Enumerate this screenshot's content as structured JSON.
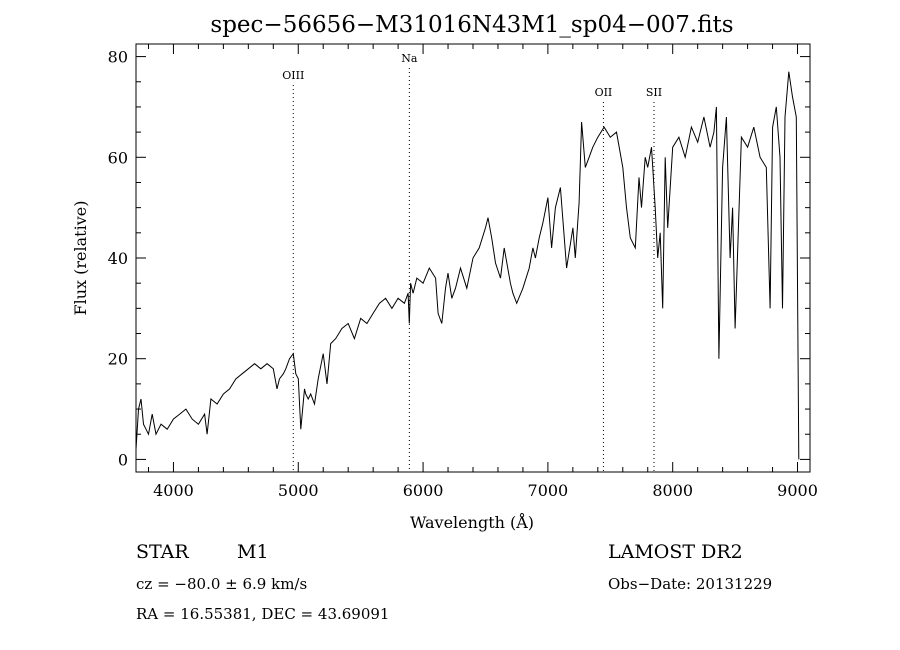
{
  "chart_data": {
    "type": "line",
    "title": "spec−56656−M31016N43M1_sp04−007.fits",
    "xlabel": "Wavelength (Å)",
    "ylabel": "Flux (relative)",
    "xlim": [
      3700,
      9100
    ],
    "ylim": [
      -2.5,
      82.5
    ],
    "xticks": [
      4000,
      5000,
      6000,
      7000,
      8000,
      9000
    ],
    "yticks": [
      0,
      20,
      40,
      60,
      80
    ],
    "grid": false,
    "series": [
      {
        "x": [
          3700,
          3720,
          3740,
          3760,
          3780,
          3800,
          3830,
          3860,
          3900,
          3950,
          4000,
          4050,
          4100,
          4150,
          4200,
          4250,
          4270,
          4300,
          4350,
          4400,
          4450,
          4500,
          4550,
          4600,
          4650,
          4700,
          4750,
          4800,
          4830,
          4850,
          4880,
          4900,
          4930,
          4960,
          4980,
          5000,
          5020,
          5050,
          5060,
          5080,
          5100,
          5130,
          5160,
          5200,
          5230,
          5260,
          5300,
          5350,
          5400,
          5450,
          5500,
          5550,
          5600,
          5650,
          5700,
          5750,
          5800,
          5850,
          5880,
          5890,
          5900,
          5920,
          5950,
          6000,
          6050,
          6100,
          6120,
          6150,
          6180,
          6200,
          6230,
          6260,
          6300,
          6350,
          6400,
          6450,
          6500,
          6520,
          6550,
          6580,
          6620,
          6650,
          6700,
          6720,
          6750,
          6800,
          6850,
          6880,
          6900,
          6930,
          6960,
          7000,
          7030,
          7060,
          7100,
          7150,
          7200,
          7220,
          7250,
          7270,
          7300,
          7330,
          7360,
          7400,
          7450,
          7500,
          7550,
          7600,
          7630,
          7660,
          7700,
          7730,
          7750,
          7780,
          7800,
          7830,
          7860,
          7880,
          7900,
          7920,
          7940,
          7960,
          8000,
          8050,
          8100,
          8150,
          8200,
          8250,
          8300,
          8330,
          8350,
          8370,
          8400,
          8430,
          8460,
          8480,
          8500,
          8550,
          8600,
          8650,
          8700,
          8750,
          8780,
          8800,
          8830,
          8860,
          8880,
          8900,
          8930,
          8960,
          8990,
          9000,
          9010
        ],
        "y": [
          2,
          10,
          12,
          7,
          6,
          5,
          9,
          5,
          7,
          6,
          8,
          9,
          10,
          8,
          7,
          9,
          5,
          12,
          11,
          13,
          14,
          16,
          17,
          18,
          19,
          18,
          19,
          18,
          14,
          16,
          17,
          18,
          20,
          21,
          17,
          16,
          6,
          14,
          13,
          12,
          13,
          11,
          16,
          21,
          15,
          23,
          24,
          26,
          27,
          24,
          28,
          27,
          29,
          31,
          32,
          30,
          32,
          31,
          33,
          27,
          35,
          33,
          36,
          35,
          38,
          36,
          29,
          27,
          34,
          37,
          32,
          34,
          38,
          34,
          40,
          42,
          46,
          48,
          44,
          39,
          36,
          42,
          35,
          33,
          31,
          34,
          38,
          42,
          40,
          44,
          47,
          52,
          42,
          50,
          54,
          38,
          46,
          40,
          51,
          67,
          58,
          60,
          62,
          64,
          66,
          64,
          65,
          58,
          50,
          44,
          42,
          56,
          50,
          60,
          58,
          62,
          50,
          40,
          45,
          30,
          60,
          46,
          62,
          64,
          60,
          66,
          63,
          68,
          62,
          65,
          70,
          20,
          58,
          68,
          40,
          50,
          26,
          64,
          62,
          66,
          60,
          58,
          30,
          66,
          70,
          60,
          30,
          68,
          77,
          72,
          68,
          35,
          0
        ]
      }
    ],
    "annotations": [
      {
        "label": "OIII",
        "x": 4960
      },
      {
        "label": "Na",
        "x": 5890
      },
      {
        "label": "OII",
        "x": 7445
      },
      {
        "label": "SII",
        "x": 7850
      }
    ]
  },
  "info": {
    "class_label": "STAR",
    "subclass": "M1",
    "survey": "LAMOST DR2",
    "cz_text": "cz = −80.0 ± 6.9 km/s",
    "obs_date_text": "Obs−Date: 20131229",
    "coords_text": "RA =  16.55381, DEC =  43.69091"
  }
}
